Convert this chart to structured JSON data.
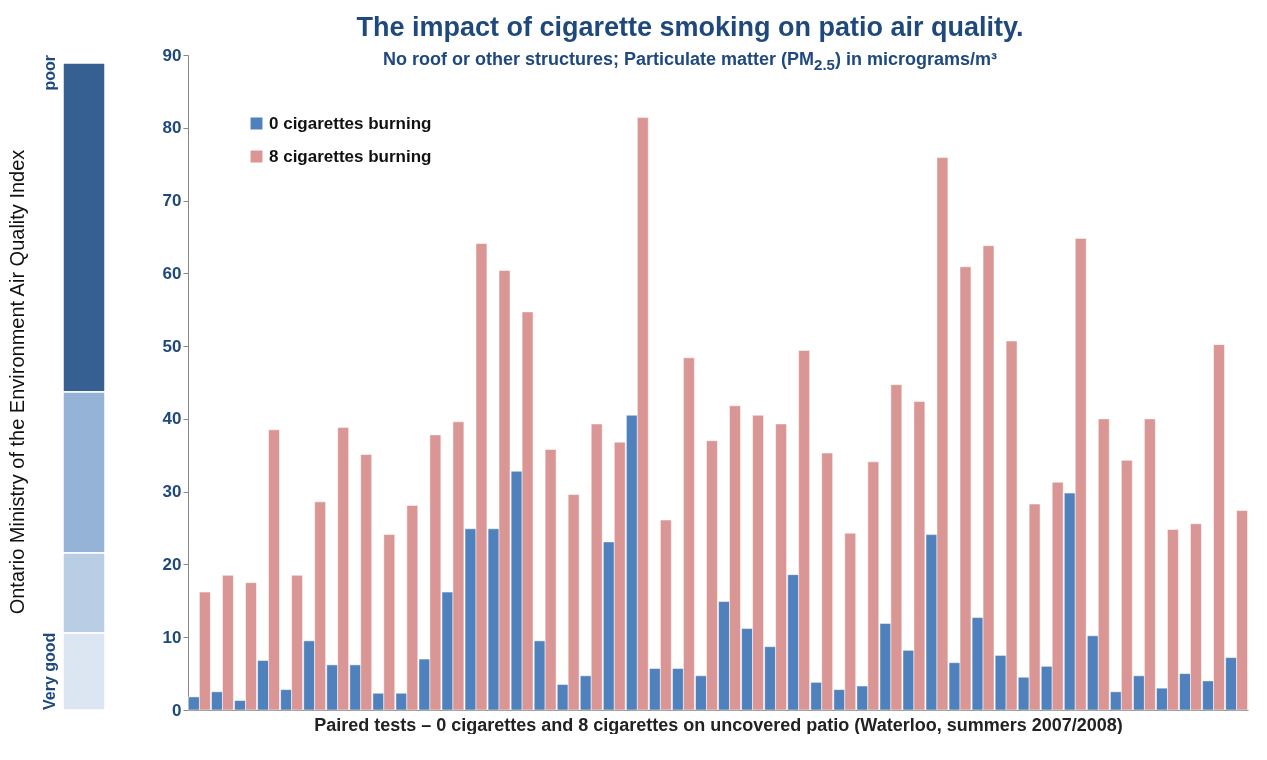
{
  "chart_data": {
    "type": "bar",
    "title": "The impact of cigarette smoking on patio air quality.",
    "subtitle": "No roof or other structures; Particulate matter (PM$_{2.5}$) in micrograms/m³",
    "xlabel": "Paired tests – 0 cigarettes and 8 cigarettes on uncovered patio (Waterloo, summers 2007/2008)",
    "annotations": [
      "Ontario Ministry of the Environment Air Quality Index",
      "Very good",
      "poor"
    ],
    "categories": [
      null,
      null,
      null,
      null,
      null,
      null,
      null,
      null,
      null,
      null,
      null,
      null,
      null,
      null,
      null,
      null,
      null,
      null,
      null,
      null,
      null,
      null,
      null,
      null,
      null,
      null,
      null,
      null,
      null,
      null,
      null,
      null,
      null,
      null,
      null,
      null,
      null,
      null,
      null,
      null,
      null,
      null,
      null,
      null,
      null,
      null
    ],
    "series": [
      {
        "name": "0 cigarettes burning",
        "color": "#4f81bd",
        "values": [
          1.8,
          2.5,
          1.3,
          6.8,
          2.8,
          9.5,
          6.2,
          6.2,
          2.3,
          2.3,
          7,
          16.2,
          24.9,
          24.9,
          32.8,
          9.5,
          3.5,
          4.7,
          23.1,
          40.5,
          5.7,
          5.7,
          4.7,
          14.9,
          11.2,
          8.7,
          18.6,
          3.8,
          2.8,
          3.3,
          11.9,
          8.2,
          24.1,
          6.5,
          12.7,
          7.5,
          4.5,
          6,
          29.8,
          10.2,
          2.5,
          4.7,
          3,
          5,
          4,
          7.2
        ]
      },
      {
        "name": "8 cigarettes burning",
        "color": "#d99694",
        "values": [
          16.2,
          18.5,
          17.5,
          38.5,
          18.5,
          28.6,
          38.8,
          35.1,
          24.1,
          28.1,
          37.8,
          39.6,
          64.1,
          60.4,
          54.7,
          35.8,
          29.6,
          39.3,
          36.8,
          81.4,
          26.1,
          48.4,
          37,
          41.8,
          40.5,
          39.3,
          49.4,
          35.3,
          24.3,
          34.1,
          44.7,
          42.4,
          75.9,
          60.9,
          63.8,
          50.7,
          28.3,
          31.3,
          64.8,
          40,
          34.3,
          40,
          24.8,
          25.6,
          50.2,
          27.4
        ]
      }
    ],
    "ylim": [
      0,
      90
    ],
    "yticks": [
      0,
      10,
      20,
      30,
      40,
      50,
      60,
      70,
      80,
      90
    ],
    "legend": "top left"
  }
}
